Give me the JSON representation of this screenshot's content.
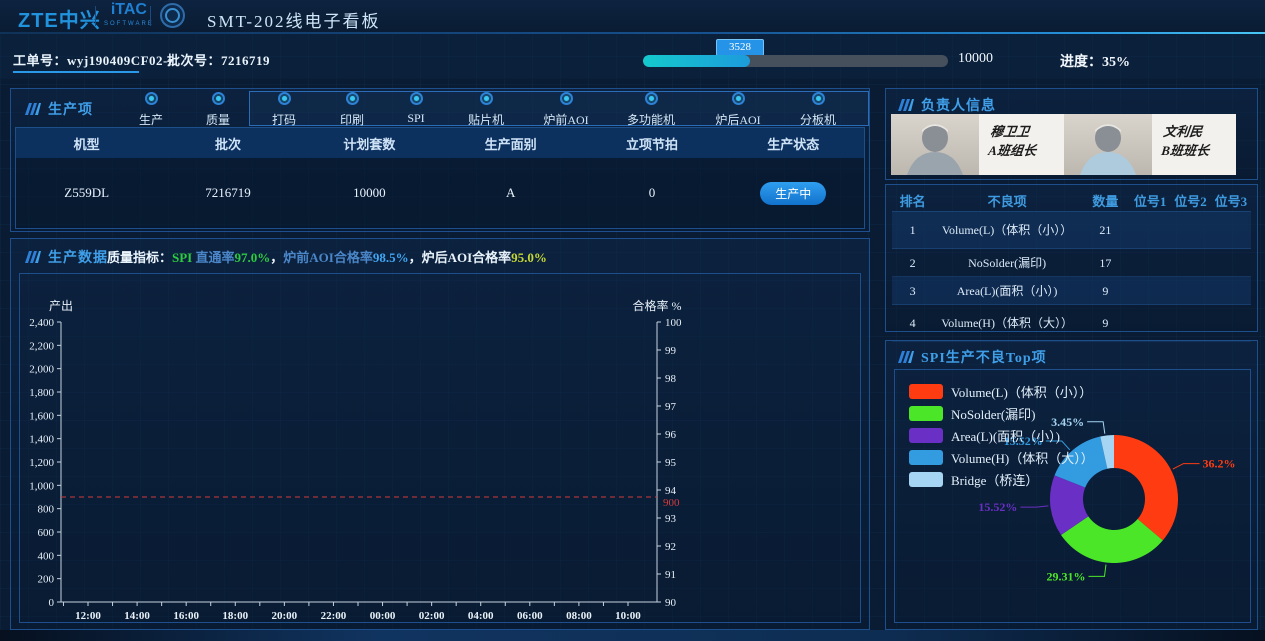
{
  "header": {
    "logo_zte": "ZTE中兴",
    "logo_itac": "iTAC",
    "logo_itac_sub": "SOFTWARE",
    "title": "SMT-202线电子看板"
  },
  "info_bar": {
    "work_order_label": "工单号：",
    "work_order_value": "wyj190409CF02-z",
    "batch_label": "批次号：",
    "batch_value": "7216719",
    "progress_badge": "3528",
    "progress_total": "10000",
    "progress_label": "进度：",
    "progress_value": "35%",
    "progress_percent": 35
  },
  "production_items": {
    "title": "生产项",
    "steps": [
      "生产",
      "质量",
      "打码",
      "印刷",
      "SPI",
      "贴片机",
      "炉前AOI",
      "多功能机",
      "炉后AOI",
      "分板机"
    ],
    "table_headers": [
      "机型",
      "批次",
      "计划套数",
      "生产面别",
      "立项节拍",
      "生产状态"
    ],
    "table_row": [
      "Z559DL",
      "7216719",
      "10000",
      "A",
      "0"
    ],
    "status_label": "生产中"
  },
  "production_data": {
    "title": "生产数据",
    "quality_label": "质量指标：",
    "indicators": [
      {
        "parts": [
          {
            "t": "SPI ",
            "c": "#2ecc40"
          },
          {
            "t": "直通率",
            "c": "#4a86c8"
          },
          {
            "t": "97.0%",
            "c": "#2ecc40"
          }
        ]
      },
      {
        "parts": [
          {
            "t": "炉前AOI合格率",
            "c": "#4a86c8"
          },
          {
            "t": "98.5%",
            "c": "#3fa7f3"
          }
        ]
      },
      {
        "parts": [
          {
            "t": "炉后AOI合格率",
            "c": "#e8f2fa"
          },
          {
            "t": "95.0%",
            "c": "#c6d833"
          }
        ]
      }
    ],
    "separator": "，"
  },
  "staff_panel": {
    "title": "负责人信息",
    "members": [
      {
        "name": "穆卫卫",
        "role": "A班组长"
      },
      {
        "name": "文利民",
        "role": "B班班长"
      }
    ]
  },
  "defect_table": {
    "headers": [
      "排名",
      "不良项",
      "数量",
      "位号1",
      "位号2",
      "位号3"
    ],
    "rows": [
      {
        "rank": "1",
        "item": "Volume(L)（体积（小））",
        "count": "21",
        "pos1": "",
        "pos2": "",
        "pos3": ""
      },
      {
        "rank": "2",
        "item": "NoSolder(漏印)",
        "count": "17",
        "pos1": "",
        "pos2": "",
        "pos3": ""
      },
      {
        "rank": "3",
        "item": "Area(L)(面积（小）)",
        "count": "9",
        "pos1": "",
        "pos2": "",
        "pos3": ""
      },
      {
        "rank": "4",
        "item": "Volume(H)（体积（大））",
        "count": "9",
        "pos1": "",
        "pos2": "",
        "pos3": ""
      }
    ]
  },
  "chart_data": [
    {
      "id": "output-qualified-trend",
      "type": "line",
      "title": "",
      "x": [
        "12:00",
        "14:00",
        "16:00",
        "18:00",
        "20:00",
        "22:00",
        "00:00",
        "02:00",
        "04:00",
        "06:00",
        "08:00",
        "10:00"
      ],
      "y_left": {
        "label": "产出",
        "min": 0,
        "max": 2400,
        "step": 200,
        "ticks": [
          "0",
          "200",
          "400",
          "600",
          "800",
          "1,000",
          "1,200",
          "1,400",
          "1,600",
          "1,800",
          "2,000",
          "2,200",
          "2,400"
        ]
      },
      "y_right": {
        "label": "合格率 %",
        "min": 90,
        "max": 100,
        "step": 1,
        "ticks": [
          "90",
          "91",
          "92",
          "93",
          "94",
          "95",
          "96",
          "97",
          "98",
          "99",
          "100"
        ]
      },
      "series": [],
      "reference_line": {
        "axis": "left",
        "value": 900,
        "label": "900",
        "color": "#d23b3b",
        "style": "dashed"
      },
      "grid": false,
      "note": "plot area empty - no series data drawn yet"
    },
    {
      "id": "spi-defect-top",
      "type": "pie",
      "donut": true,
      "title": "SPI生产不良Top项",
      "legend_position": "top-left",
      "slices": [
        {
          "label": "Volume(L)（体积（小））",
          "value": 36.2,
          "pct_label": "36.2%",
          "color": "#ff3c11",
          "label_angle": 63
        },
        {
          "label": "NoSolder(漏印)",
          "value": 29.31,
          "pct_label": "29.31%",
          "color": "#4ce629",
          "label_angle": 187
        },
        {
          "label": "Area(L)(面积（小）)",
          "value": 15.52,
          "pct_label": "15.52%",
          "color": "#6a2fc4",
          "label_angle": 264
        },
        {
          "label": "Volume(H)（体积（大））",
          "value": 15.52,
          "pct_label": "15.52%",
          "color": "#339be0",
          "label_angle": 318
        },
        {
          "label": "Bridge（桥连）",
          "value": 3.45,
          "pct_label": "3.45%",
          "color": "#a6d5f3",
          "label_angle": 352
        }
      ]
    }
  ],
  "theme": {
    "accent": "#2493e8",
    "panel_border": "#1d4f8c",
    "panel_title": "#3f9fe8",
    "axis": "#c7d3e0",
    "ref_red": "#d23b3b"
  }
}
